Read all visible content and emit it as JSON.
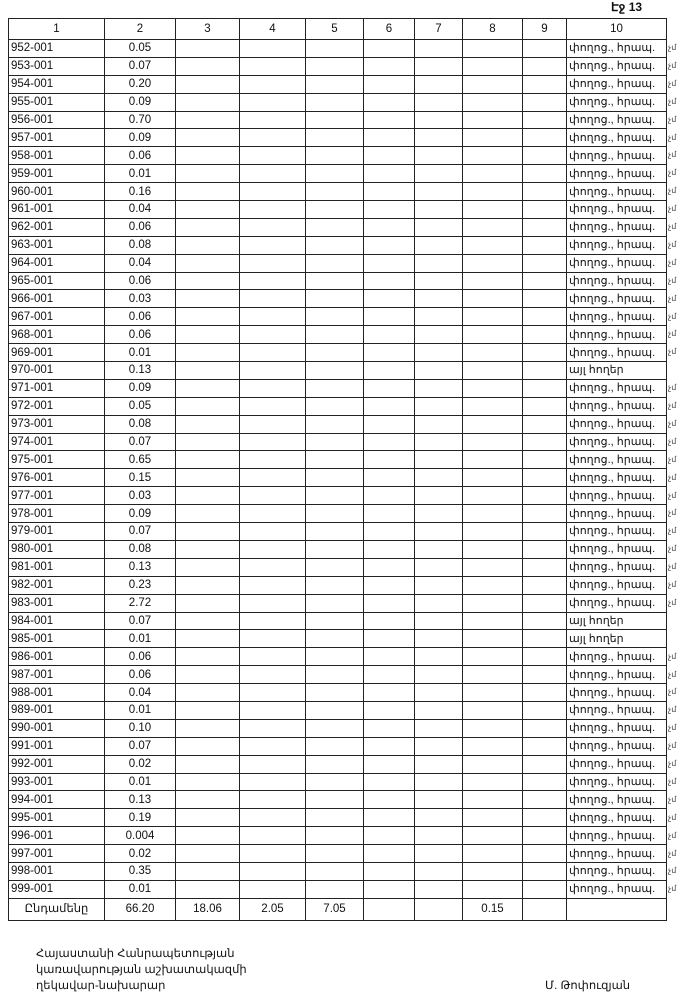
{
  "page_label": "Էջ 13",
  "headers": [
    "1",
    "2",
    "3",
    "4",
    "5",
    "6",
    "7",
    "8",
    "9",
    "10"
  ],
  "land_types": {
    "street": "փողոց., հրապ.",
    "other": "այլ հողեր"
  },
  "margin_mark": "չմ",
  "rows": [
    [
      "952-001",
      "0.05",
      "street"
    ],
    [
      "953-001",
      "0.07",
      "street"
    ],
    [
      "954-001",
      "0.20",
      "street"
    ],
    [
      "955-001",
      "0.09",
      "street"
    ],
    [
      "956-001",
      "0.70",
      "street"
    ],
    [
      "957-001",
      "0.09",
      "street"
    ],
    [
      "958-001",
      "0.06",
      "street"
    ],
    [
      "959-001",
      "0.01",
      "street"
    ],
    [
      "960-001",
      "0.16",
      "street"
    ],
    [
      "961-001",
      "0.04",
      "street"
    ],
    [
      "962-001",
      "0.06",
      "street"
    ],
    [
      "963-001",
      "0.08",
      "street"
    ],
    [
      "964-001",
      "0.04",
      "street"
    ],
    [
      "965-001",
      "0.06",
      "street"
    ],
    [
      "966-001",
      "0.03",
      "street"
    ],
    [
      "967-001",
      "0.06",
      "street"
    ],
    [
      "968-001",
      "0.06",
      "street"
    ],
    [
      "969-001",
      "0.01",
      "street"
    ],
    [
      "970-001",
      "0.13",
      "other"
    ],
    [
      "971-001",
      "0.09",
      "street"
    ],
    [
      "972-001",
      "0.05",
      "street"
    ],
    [
      "973-001",
      "0.08",
      "street"
    ],
    [
      "974-001",
      "0.07",
      "street"
    ],
    [
      "975-001",
      "0.65",
      "street"
    ],
    [
      "976-001",
      "0.15",
      "street"
    ],
    [
      "977-001",
      "0.03",
      "street"
    ],
    [
      "978-001",
      "0.09",
      "street"
    ],
    [
      "979-001",
      "0.07",
      "street"
    ],
    [
      "980-001",
      "0.08",
      "street"
    ],
    [
      "981-001",
      "0.13",
      "street"
    ],
    [
      "982-001",
      "0.23",
      "street"
    ],
    [
      "983-001",
      "2.72",
      "street"
    ],
    [
      "984-001",
      "0.07",
      "other"
    ],
    [
      "985-001",
      "0.01",
      "other"
    ],
    [
      "986-001",
      "0.06",
      "street"
    ],
    [
      "987-001",
      "0.06",
      "street"
    ],
    [
      "988-001",
      "0.04",
      "street"
    ],
    [
      "989-001",
      "0.01",
      "street"
    ],
    [
      "990-001",
      "0.10",
      "street"
    ],
    [
      "991-001",
      "0.07",
      "street"
    ],
    [
      "992-001",
      "0.02",
      "street"
    ],
    [
      "993-001",
      "0.01",
      "street"
    ],
    [
      "994-001",
      "0.13",
      "street"
    ],
    [
      "995-001",
      "0.19",
      "street"
    ],
    [
      "996-001",
      "0.004",
      "street"
    ],
    [
      "997-001",
      "0.02",
      "street"
    ],
    [
      "998-001",
      "0.35",
      "street"
    ],
    [
      "999-001",
      "0.01",
      "street"
    ]
  ],
  "totals": {
    "label": "Ընդամենը",
    "values": [
      "66.20",
      "18.06",
      "2.05",
      "7.05",
      "",
      "",
      "0.15",
      "",
      ""
    ]
  },
  "footer": {
    "line1": "Հայաստանի Հանրապետության",
    "line2": "կառավարության աշխատակազմի",
    "line3": "ղեկավար-նախարար",
    "signatory": "Մ. Թոփուզյան"
  }
}
